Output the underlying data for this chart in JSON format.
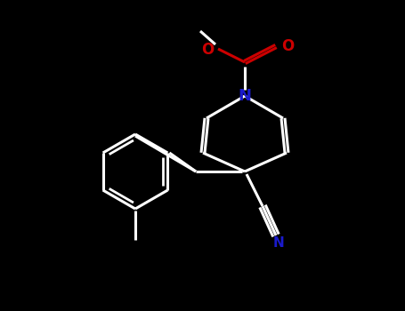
{
  "bg_color": "#000000",
  "bond_color": "#ffffff",
  "n_color": "#1a1acc",
  "o_color": "#cc0000",
  "line_width": 2.2,
  "font_size": 10,
  "fig_width": 4.55,
  "fig_height": 3.5,
  "dpi": 100,
  "xlim": [
    0,
    455
  ],
  "ylim": [
    0,
    350
  ]
}
